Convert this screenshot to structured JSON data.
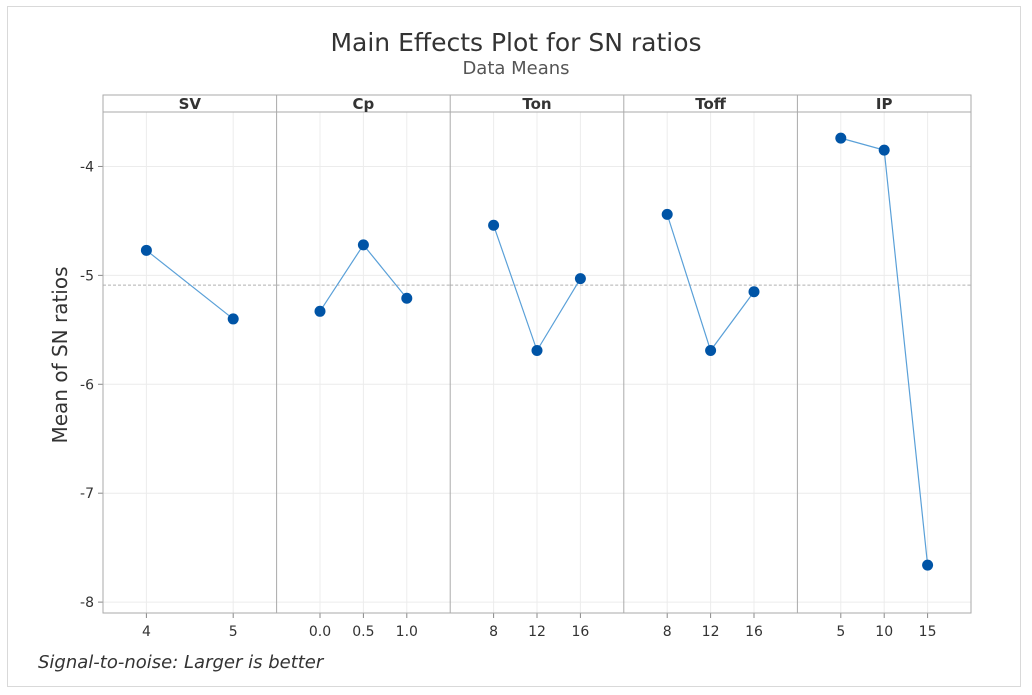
{
  "chart_data": {
    "type": "line",
    "title": "Main Effects Plot for SN ratios",
    "subtitle": "Data Means",
    "ylabel": "Mean of SN ratios",
    "footnote": "Signal-to-noise: Larger is better",
    "ylim": [
      -8.1,
      -3.5
    ],
    "yticks": [
      -8,
      -7,
      -6,
      -5,
      -4
    ],
    "overall_mean": -5.09,
    "colors": {
      "line": "#5aa0d8",
      "marker": "#0054a6",
      "mean_line": "#b0b0b0",
      "grid": "#ececec"
    },
    "panels": [
      {
        "factor": "SV",
        "levels": [
          "4",
          "5"
        ],
        "values": [
          -4.77,
          -5.4
        ]
      },
      {
        "factor": "Cp",
        "levels": [
          "0.0",
          "0.5",
          "1.0"
        ],
        "values": [
          -5.33,
          -4.72,
          -5.21
        ]
      },
      {
        "factor": "Ton",
        "levels": [
          "8",
          "12",
          "16"
        ],
        "values": [
          -4.54,
          -5.69,
          -5.03
        ]
      },
      {
        "factor": "Toff",
        "levels": [
          "8",
          "12",
          "16"
        ],
        "values": [
          -4.44,
          -5.69,
          -5.15
        ]
      },
      {
        "factor": "IP",
        "levels": [
          "5",
          "10",
          "15"
        ],
        "values": [
          -3.74,
          -3.85,
          -7.66
        ]
      }
    ]
  }
}
